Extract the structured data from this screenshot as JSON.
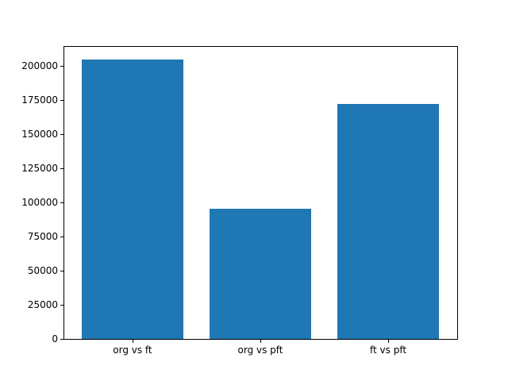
{
  "figure": {
    "background": "#ffffff"
  },
  "chart_data": {
    "type": "bar",
    "categories": [
      "org vs ft",
      "org vs pft",
      "ft vs pft"
    ],
    "values": [
      204600,
      95500,
      172400
    ],
    "title": "",
    "xlabel": "",
    "ylabel": "",
    "ylim": [
      0,
      214830
    ],
    "yticks": [
      0,
      25000,
      50000,
      75000,
      100000,
      125000,
      150000,
      175000,
      200000
    ],
    "ytick_labels": [
      "0",
      "25000",
      "50000",
      "75000",
      "100000",
      "125000",
      "150000",
      "175000",
      "200000"
    ],
    "bar_color": "#1f77b4",
    "axis_color": "#000000",
    "text_color": "#000000",
    "grid": false,
    "legend": false,
    "bar_width_fraction": 0.8,
    "x_margin_fraction": 0.05
  }
}
